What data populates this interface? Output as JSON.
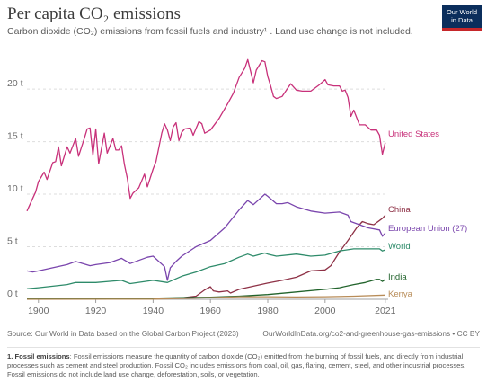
{
  "header": {
    "title": "Per capita CO₂ emissions",
    "subtitle": "Carbon dioxide (CO₂) emissions from fossil fuels and industry¹ . Land use change is not included.",
    "logo_line1": "Our World",
    "logo_line2": "in Data"
  },
  "footer": {
    "source": "Source: Our World in Data based on the Global Carbon Project (2023)",
    "url": "OurWorldInData.org/co2-and-greenhouse-gas-emissions • CC BY",
    "footnote_title": "1. Fossil emissions",
    "footnote_text": ": Fossil emissions measure the quantity of carbon dioxide (CO₂) emitted from the burning of fossil fuels, and directly from industrial processes such as cement and steel production. Fossil CO₂ includes emissions from coal, oil, gas, flaring, cement, steel, and other industrial processes. Fossil emissions do not include land use change, deforestation, soils, or vegetation."
  },
  "colors": {
    "United States": "#c8317a",
    "China": "#8e3146",
    "European Union (27)": "#7a45ad",
    "World": "#2e8b6a",
    "India": "#21632b",
    "Kenya": "#b88c58"
  },
  "chart_data": {
    "type": "line",
    "title": "Per capita CO₂ emissions",
    "xlabel": "",
    "ylabel": "",
    "xlim": [
      1896,
      2022
    ],
    "ylim": [
      0,
      23
    ],
    "x_ticks": [
      1900,
      1920,
      1940,
      1960,
      1980,
      2000,
      2021
    ],
    "y_ticks": [
      0,
      5,
      10,
      15,
      20
    ],
    "y_tick_labels": [
      "0 t",
      "5 t",
      "10 t",
      "15 t",
      "20 t"
    ],
    "grid": "horizontal dashed",
    "legend": "inline labels at right end of lines",
    "series": [
      {
        "name": "United States",
        "x": [
          1896,
          1898,
          1899,
          1900,
          1902,
          1903,
          1905,
          1906,
          1907,
          1908,
          1910,
          1911,
          1913,
          1914,
          1916,
          1917,
          1918,
          1919,
          1920,
          1921,
          1923,
          1924,
          1926,
          1927,
          1928,
          1929,
          1930,
          1931,
          1932,
          1933,
          1935,
          1937,
          1938,
          1940,
          1941,
          1943,
          1944,
          1945,
          1946,
          1947,
          1948,
          1949,
          1950,
          1951,
          1953,
          1954,
          1956,
          1957,
          1958,
          1960,
          1963,
          1966,
          1968,
          1970,
          1972,
          1973,
          1974,
          1975,
          1976,
          1978,
          1979,
          1980,
          1981,
          1982,
          1983,
          1985,
          1988,
          1990,
          1992,
          1995,
          1998,
          2000,
          2001,
          2003,
          2005,
          2006,
          2007,
          2008,
          2009,
          2010,
          2012,
          2014,
          2016,
          2018,
          2019,
          2020,
          2021
        ],
        "values": [
          8.4,
          9.6,
          10.2,
          11.2,
          12.1,
          11.4,
          13.0,
          13.1,
          14.5,
          12.7,
          14.5,
          13.9,
          15.3,
          13.6,
          15.3,
          16.2,
          16.3,
          13.7,
          16.2,
          12.9,
          15.8,
          13.9,
          15.3,
          14.2,
          14.2,
          14.6,
          12.8,
          11.5,
          9.6,
          10.1,
          10.6,
          11.9,
          10.7,
          12.4,
          13.1,
          15.8,
          16.7,
          16.1,
          15.1,
          16.4,
          16.8,
          15.1,
          15.9,
          16.2,
          16.3,
          15.6,
          16.9,
          16.7,
          15.8,
          16.1,
          17.2,
          18.6,
          19.6,
          21.1,
          22.0,
          22.8,
          21.7,
          20.6,
          21.8,
          22.7,
          22.6,
          21.2,
          20.3,
          19.3,
          19.1,
          19.3,
          20.5,
          19.9,
          19.8,
          19.8,
          20.4,
          20.9,
          20.4,
          20.3,
          20.3,
          19.8,
          19.9,
          19.2,
          17.4,
          18.0,
          16.6,
          16.6,
          16.1,
          16.1,
          15.6,
          13.8,
          14.9
        ]
      },
      {
        "name": "China",
        "x": [
          1896,
          1920,
          1940,
          1950,
          1955,
          1958,
          1960,
          1961,
          1963,
          1966,
          1967,
          1970,
          1975,
          1980,
          1985,
          1990,
          1995,
          2000,
          2002,
          2005,
          2008,
          2011,
          2013,
          2015,
          2017,
          2019,
          2020,
          2021
        ],
        "values": [
          0.02,
          0.04,
          0.08,
          0.14,
          0.3,
          0.9,
          1.2,
          0.8,
          0.7,
          0.8,
          0.6,
          0.95,
          1.25,
          1.55,
          1.8,
          2.1,
          2.7,
          2.8,
          3.2,
          4.5,
          5.6,
          6.8,
          7.4,
          7.2,
          7.1,
          7.5,
          7.7,
          8.0
        ]
      },
      {
        "name": "European Union (27)",
        "x": [
          1896,
          1898,
          1900,
          1905,
          1910,
          1913,
          1918,
          1920,
          1925,
          1929,
          1932,
          1935,
          1938,
          1940,
          1944,
          1945,
          1946,
          1948,
          1950,
          1955,
          1960,
          1965,
          1970,
          1973,
          1975,
          1979,
          1980,
          1983,
          1985,
          1987,
          1990,
          1995,
          2000,
          2005,
          2008,
          2009,
          2012,
          2015,
          2019,
          2020,
          2021
        ],
        "values": [
          2.7,
          2.6,
          2.7,
          3.0,
          3.3,
          3.6,
          3.2,
          3.3,
          3.5,
          3.9,
          3.4,
          3.7,
          4.0,
          4.1,
          3.1,
          1.8,
          3.0,
          3.6,
          4.1,
          5.0,
          5.6,
          6.8,
          8.5,
          9.4,
          9.0,
          10.0,
          9.8,
          9.1,
          9.1,
          9.2,
          8.8,
          8.4,
          8.2,
          8.3,
          8.0,
          7.4,
          7.1,
          6.8,
          6.6,
          6.0,
          6.3
        ]
      },
      {
        "name": "World",
        "x": [
          1896,
          1900,
          1910,
          1913,
          1920,
          1929,
          1932,
          1940,
          1945,
          1950,
          1955,
          1960,
          1965,
          1970,
          1973,
          1975,
          1979,
          1980,
          1983,
          1990,
          1995,
          2000,
          2005,
          2010,
          2012,
          2015,
          2019,
          2020,
          2021
        ],
        "values": [
          1.0,
          1.1,
          1.4,
          1.6,
          1.6,
          1.8,
          1.5,
          1.8,
          1.6,
          2.2,
          2.6,
          3.1,
          3.4,
          4.0,
          4.3,
          4.1,
          4.4,
          4.3,
          4.1,
          4.3,
          4.1,
          4.2,
          4.6,
          4.8,
          4.8,
          4.8,
          4.8,
          4.6,
          4.7
        ]
      },
      {
        "name": "India",
        "x": [
          1896,
          1920,
          1940,
          1950,
          1960,
          1970,
          1980,
          1990,
          2000,
          2005,
          2010,
          2014,
          2018,
          2019,
          2020,
          2021
        ],
        "values": [
          0.05,
          0.07,
          0.1,
          0.15,
          0.2,
          0.3,
          0.45,
          0.7,
          0.95,
          1.1,
          1.4,
          1.6,
          1.9,
          1.9,
          1.7,
          1.9
        ]
      },
      {
        "name": "Kenya",
        "x": [
          1896,
          1940,
          1960,
          1970,
          1980,
          1990,
          2000,
          2010,
          2021
        ],
        "values": [
          0.0,
          0.02,
          0.15,
          0.25,
          0.25,
          0.22,
          0.25,
          0.3,
          0.4
        ]
      }
    ]
  }
}
